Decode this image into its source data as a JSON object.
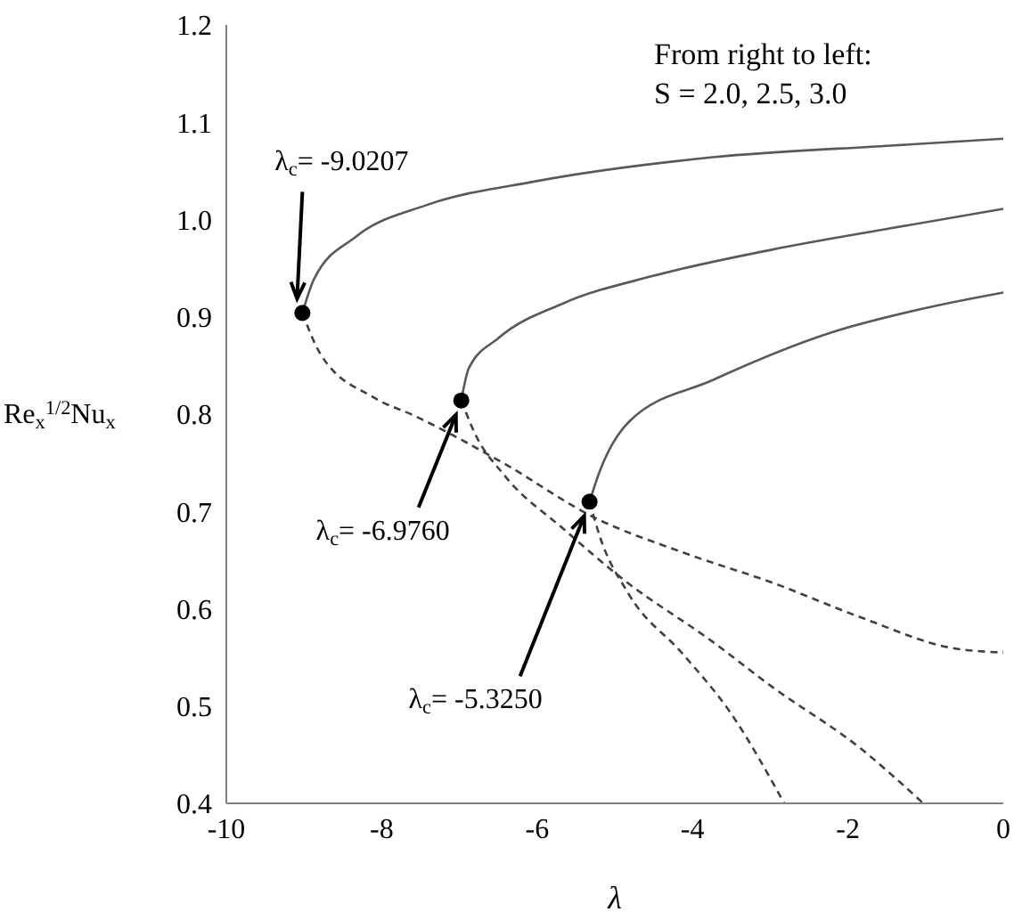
{
  "chart_data": {
    "type": "line",
    "xlabel": "λ",
    "ylabel": "Re$_{x}$$^{1/2}$Nu$_{x}$",
    "xlim": [
      -10,
      0
    ],
    "xticks": [
      -10,
      -8,
      -6,
      -4,
      -2,
      0
    ],
    "ylim": [
      0.4,
      1.2
    ],
    "yticks": [
      0.4,
      0.5,
      0.6,
      0.7,
      0.8,
      0.9,
      {
        "value": 1,
        "label": "1.0"
      },
      1.1,
      1.2
    ],
    "grid": false,
    "series": [
      {
        "color": "#595959",
        "line_style": "solid",
        "marker": "none",
        "x": [
          -9.0207,
          -8.87,
          -8.34,
          -7.42,
          -6.04,
          -3.74,
          -1.45,
          0
        ],
        "values": [
          0.904,
          0.939,
          0.982,
          1.015,
          1.039,
          1.064,
          1.076,
          1.083
        ]
      },
      {
        "color": "#595959",
        "line_style": "solid",
        "marker": "none",
        "x": [
          -6.976,
          -6.88,
          -6.5,
          -5.66,
          -4.51,
          -2.98,
          -1.45,
          0
        ],
        "values": [
          0.814,
          0.847,
          0.878,
          0.914,
          0.942,
          0.969,
          0.991,
          1.011
        ]
      },
      {
        "color": "#595959",
        "line_style": "solid",
        "marker": "none",
        "x": [
          -5.325,
          -5.2,
          -4.82,
          -3.74,
          -2.21,
          -1.06,
          0
        ],
        "values": [
          0.71,
          0.74,
          0.792,
          0.835,
          0.884,
          0.908,
          0.925
        ]
      },
      {
        "color": "#404040",
        "line_style": "dashed",
        "marker": "none",
        "x": [
          -9.0207,
          -8.79,
          -8.1,
          -7.57,
          -6.42,
          -5.27,
          -4.13,
          -2.98,
          -1.83,
          -0.68,
          0
        ],
        "values": [
          0.904,
          0.862,
          0.817,
          0.798,
          0.749,
          0.694,
          0.658,
          0.627,
          0.591,
          0.56,
          0.555
        ]
      },
      {
        "color": "#404040",
        "line_style": "dashed",
        "marker": "none",
        "x": [
          -6.976,
          -6.8,
          -6.42,
          -5.66,
          -4.89,
          -3.74,
          -2.98,
          -1.83,
          -1.03
        ],
        "values": [
          0.814,
          0.78,
          0.737,
          0.682,
          0.63,
          0.566,
          0.52,
          0.456,
          0.4
        ]
      },
      {
        "color": "#404040",
        "line_style": "dashed",
        "marker": "none",
        "x": [
          -5.325,
          -5.2,
          -4.82,
          -4.13,
          -3.51,
          -2.82
        ],
        "values": [
          0.71,
          0.676,
          0.615,
          0.554,
          0.493,
          0.4
        ]
      },
      {
        "type": "scatter",
        "color": "#000000",
        "marker": "circle",
        "x": [
          -9.0207,
          -6.976,
          -5.325
        ],
        "values": [
          0.904,
          0.814,
          0.71
        ]
      }
    ],
    "annotations": [
      "From right to left:",
      "S = 2.0, 2.5, 3.0",
      {
        "text": "λ$_{c}$= -9.0207",
        "x": -9.0207,
        "y": 0.904
      },
      {
        "text": "λ$_{c}$= -6.9760",
        "x": -6.976,
        "y": 0.814
      },
      {
        "text": "λ$_{c}$= -5.3250",
        "x": -5.325,
        "y": 0.71
      }
    ]
  }
}
